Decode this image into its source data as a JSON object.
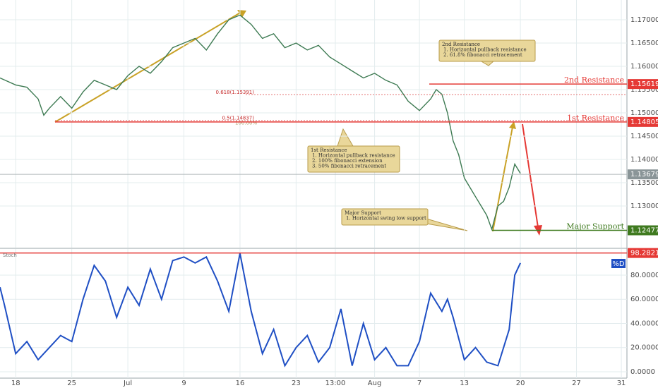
{
  "chart_data": [
    {
      "type": "line",
      "xlim": [
        -1.4,
        54.5
      ],
      "ylim": [
        1.12121,
        1.17424
      ],
      "yticks": [
        {
          "value": 1.13,
          "label": "1.13000"
        },
        {
          "value": 1.135,
          "label": "1.13500"
        },
        {
          "value": 1.14,
          "label": "1.14000"
        },
        {
          "value": 1.145,
          "label": "1.14500"
        },
        {
          "value": 1.15,
          "label": "1.15000"
        },
        {
          "value": 1.155,
          "label": "1.15500"
        },
        {
          "value": 1.16,
          "label": "1.16000"
        },
        {
          "value": 1.165,
          "label": "1.16500"
        },
        {
          "value": 1.17,
          "label": "1.17000"
        }
      ],
      "grid": true,
      "series": [
        {
          "color": "#3d7a52",
          "x": [
            -1.4,
            0,
            1,
            2,
            2.5,
            3,
            4,
            5,
            6,
            7,
            8,
            9,
            10,
            11,
            12,
            13,
            14,
            15,
            16,
            17,
            18,
            19,
            20,
            21,
            22,
            23,
            24,
            25,
            26,
            27,
            28,
            29,
            30,
            31,
            32,
            33,
            34,
            35,
            36,
            37,
            37.5,
            38,
            38.5,
            39,
            39.5,
            40,
            40.5,
            41,
            41.5,
            42,
            42.45,
            43,
            43.5,
            44,
            44.5,
            45
          ],
          "values": [
            1.1575,
            1.156,
            1.1555,
            1.153,
            1.1495,
            1.151,
            1.1535,
            1.151,
            1.1545,
            1.157,
            1.156,
            1.155,
            1.158,
            1.16,
            1.1585,
            1.161,
            1.164,
            1.165,
            1.166,
            1.1635,
            1.167,
            1.17,
            1.171,
            1.169,
            1.166,
            1.167,
            1.164,
            1.165,
            1.1635,
            1.1645,
            1.162,
            1.1605,
            1.159,
            1.1575,
            1.1585,
            1.157,
            1.156,
            1.1525,
            1.1505,
            1.153,
            1.155,
            1.154,
            1.15,
            1.144,
            1.141,
            1.136,
            1.134,
            1.132,
            1.13,
            1.128,
            1.125,
            1.13,
            1.131,
            1.134,
            1.139,
            1.137
          ]
        }
      ],
      "levels": [
        {
          "name": "2nd Resistance",
          "value": 1.15619,
          "color": "#e53935"
        },
        {
          "name": "1st Resistance",
          "value": 1.14805,
          "color": "#e53935"
        },
        {
          "name": "Major Support",
          "value": 1.12477,
          "color": "#3f7a1f"
        }
      ],
      "last_price": 1.13679,
      "fib": [
        {
          "label": "0.618(1.15391)",
          "value": 1.15391
        },
        {
          "label": "0.5(1.14837)",
          "value": 1.14837
        }
      ],
      "fib_extension_label": "100.00%",
      "annotations": [
        {
          "lines": [
            "2nd Resistance",
            "1. Horizontal pullback resistance",
            "2. 61.8% fibonacci retracement"
          ]
        },
        {
          "lines": [
            "1st Resistance",
            "1. Horizontal pullback resistance",
            "2. 100%  fibonacci extension",
            "3. 50% fibonacci retracement"
          ]
        },
        {
          "lines": [
            "Major Support",
            "1. Horizontal swing low support"
          ]
        }
      ]
    },
    {
      "type": "line",
      "title": "Stoch",
      "xlim": [
        -1.4,
        54.5
      ],
      "xticks": [
        {
          "value": 0,
          "label": "18"
        },
        {
          "value": 5,
          "label": "25"
        },
        {
          "value": 10,
          "label": "Jul"
        },
        {
          "value": 15,
          "label": "9"
        },
        {
          "value": 20,
          "label": "16"
        },
        {
          "value": 25,
          "label": "23"
        },
        {
          "value": 28.5,
          "label": "13:00"
        },
        {
          "value": 32,
          "label": "Aug"
        },
        {
          "value": 36,
          "label": "7"
        },
        {
          "value": 40,
          "label": "13"
        },
        {
          "value": 45,
          "label": "20"
        },
        {
          "value": 50,
          "label": "27"
        },
        {
          "value": 54,
          "label": "31"
        }
      ],
      "ylim": [
        -7.6,
        100.4
      ],
      "yticks": [
        {
          "value": 0,
          "label": "0.0000"
        },
        {
          "value": 20,
          "label": "20.0000"
        },
        {
          "value": 40,
          "label": "40.0000"
        },
        {
          "value": 60,
          "label": "60.0000"
        },
        {
          "value": 80,
          "label": "80.0000"
        }
      ],
      "grid": true,
      "level": 98.2821,
      "series": [
        {
          "name": "%D",
          "color": "#1f4fc4",
          "x": [
            -1.4,
            -1,
            0,
            1,
            2,
            3,
            4,
            5,
            6,
            7,
            8,
            9,
            10,
            11,
            12,
            13,
            14,
            15,
            16,
            17,
            18,
            19,
            20,
            21,
            22,
            23,
            24,
            25,
            26,
            27,
            28,
            29,
            30,
            31,
            32,
            33,
            34,
            35,
            36,
            37,
            38,
            38.5,
            39,
            40,
            41,
            42,
            43,
            44,
            44.5,
            45
          ],
          "values": [
            70,
            55,
            15,
            25,
            10,
            20,
            30,
            25,
            60,
            88,
            75,
            45,
            70,
            55,
            85,
            60,
            92,
            95,
            90,
            95,
            75,
            50,
            98,
            50,
            15,
            35,
            5,
            20,
            30,
            8,
            20,
            52,
            5,
            40,
            10,
            20,
            5,
            5,
            25,
            65,
            50,
            60,
            45,
            10,
            20,
            8,
            5,
            35,
            80,
            90
          ]
        }
      ]
    }
  ]
}
